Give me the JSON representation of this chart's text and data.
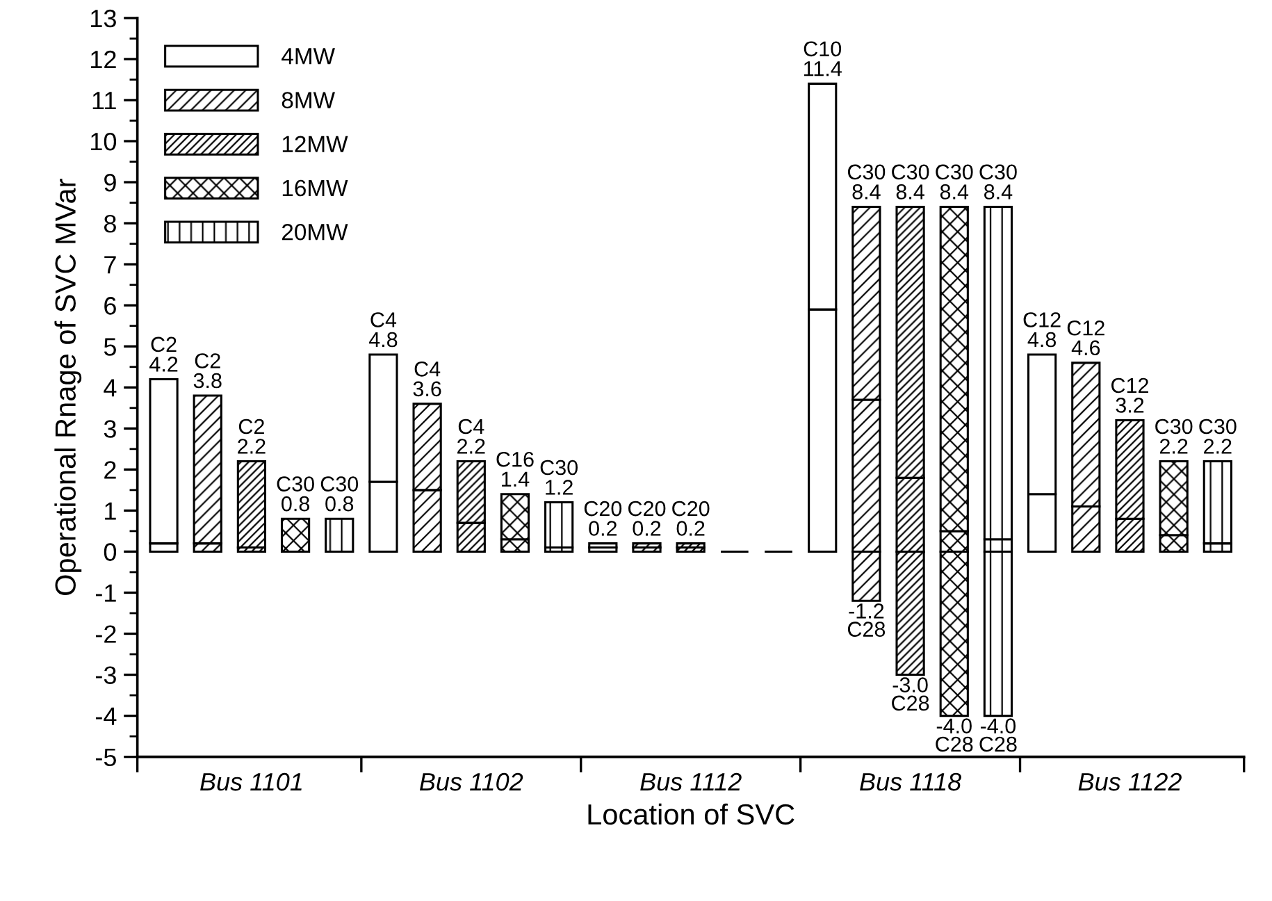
{
  "chart_data": {
    "type": "bar",
    "stacked": true,
    "xlabel": "Location of SVC",
    "ylabel": "Operational Rnage of SVC MVar",
    "categories": [
      null,
      null,
      "Bus 1101",
      null,
      null,
      null,
      null,
      "Bus 1102",
      null,
      null,
      null,
      null,
      "Bus 1112",
      null,
      null,
      null,
      null,
      "Bus 1118",
      null,
      null,
      null,
      null,
      "Bus 1122",
      null,
      null
    ],
    "series": [
      {
        "name": "4MW",
        "color": "#ffffff",
        "values": [
          0.2,
          null,
          null,
          null,
          null,
          1.7,
          null,
          null,
          null,
          null,
          0.1,
          null,
          null,
          null,
          null,
          5.9,
          null,
          null,
          null,
          null,
          1.4,
          null,
          null,
          null,
          null
        ]
      },
      {
        "color": "#ffffff",
        "values": [
          4.0,
          null,
          null,
          null,
          null,
          3.1,
          null,
          null,
          null,
          null,
          0.1,
          null,
          null,
          null,
          null,
          5.5,
          null,
          null,
          null,
          null,
          3.4,
          null,
          null,
          null,
          null
        ]
      },
      {
        "name": "8MW",
        "color": "#000000",
        "values": [
          null,
          0.2,
          null,
          null,
          null,
          null,
          1.5,
          null,
          null,
          null,
          null,
          0.1,
          null,
          null,
          null,
          null,
          3.7,
          null,
          null,
          null,
          null,
          1.1,
          null,
          null,
          null
        ]
      },
      {
        "color": "#000000",
        "values": [
          null,
          3.6,
          null,
          null,
          null,
          null,
          2.1,
          null,
          null,
          null,
          null,
          0.1,
          null,
          null,
          null,
          null,
          4.7,
          null,
          null,
          null,
          null,
          3.5,
          null,
          null,
          null
        ]
      },
      {
        "color": "#000000",
        "values": [
          null,
          null,
          null,
          null,
          null,
          null,
          null,
          null,
          null,
          null,
          null,
          null,
          null,
          null,
          null,
          null,
          -1.2,
          null,
          null,
          null,
          null,
          null,
          null,
          null,
          null
        ],
        "value_labels": [
          null,
          null,
          null,
          null,
          null,
          null,
          null,
          null,
          null,
          null,
          null,
          null,
          null,
          null,
          null,
          null,
          "-1.2\nC28",
          null,
          null,
          null,
          null,
          null,
          null,
          null,
          null
        ]
      },
      {
        "name": "12MW",
        "color": "#000000",
        "values": [
          null,
          null,
          0.1,
          null,
          null,
          null,
          null,
          0.7,
          null,
          null,
          null,
          null,
          0.1,
          null,
          null,
          null,
          null,
          1.8,
          null,
          null,
          null,
          null,
          0.8,
          null,
          null
        ]
      },
      {
        "color": "#000000",
        "values": [
          null,
          null,
          2.1,
          null,
          null,
          null,
          null,
          1.5,
          null,
          null,
          null,
          null,
          0.1,
          null,
          null,
          null,
          null,
          6.6,
          null,
          null,
          null,
          null,
          2.4,
          null,
          null
        ]
      },
      {
        "color": "#000000",
        "values": [
          null,
          null,
          null,
          null,
          null,
          null,
          null,
          null,
          null,
          null,
          null,
          null,
          null,
          null,
          null,
          null,
          null,
          -3.0,
          null,
          null,
          null,
          null,
          null,
          null,
          null
        ],
        "value_labels": [
          null,
          null,
          null,
          null,
          null,
          null,
          null,
          null,
          null,
          null,
          null,
          null,
          null,
          null,
          null,
          null,
          null,
          "-3.0\nC28",
          null,
          null,
          null,
          null,
          null,
          null,
          null
        ]
      },
      {
        "name": "16MW",
        "color": "#000000",
        "values": [
          null,
          null,
          null,
          0,
          null,
          null,
          null,
          null,
          0.3,
          null,
          null,
          null,
          null,
          0,
          null,
          null,
          null,
          null,
          0.5,
          null,
          null,
          null,
          null,
          0.4,
          null
        ]
      },
      {
        "color": "#000000",
        "values": [
          null,
          null,
          null,
          0.8,
          null,
          null,
          null,
          null,
          1.1,
          null,
          null,
          null,
          null,
          0,
          null,
          null,
          null,
          null,
          7.9,
          null,
          null,
          null,
          null,
          1.8,
          null
        ]
      },
      {
        "color": "#000000",
        "values": [
          null,
          null,
          null,
          null,
          null,
          null,
          null,
          null,
          null,
          null,
          null,
          null,
          null,
          null,
          null,
          null,
          null,
          null,
          -4.0,
          null,
          null,
          null,
          null,
          null,
          null
        ],
        "value_labels": [
          null,
          null,
          null,
          null,
          null,
          null,
          null,
          null,
          null,
          null,
          null,
          null,
          null,
          null,
          null,
          null,
          null,
          null,
          "-4.0\nC28",
          null,
          null,
          null,
          null,
          null,
          null
        ]
      },
      {
        "name": "20MW",
        "color": "#000000",
        "values": [
          null,
          null,
          null,
          null,
          0,
          null,
          null,
          null,
          null,
          0.1,
          null,
          null,
          null,
          null,
          0,
          null,
          null,
          null,
          null,
          0.3,
          null,
          null,
          null,
          null,
          0.2
        ]
      },
      {
        "color": "#000000",
        "values": [
          null,
          null,
          null,
          null,
          0.8,
          null,
          null,
          null,
          null,
          1.1,
          null,
          null,
          null,
          null,
          0,
          null,
          null,
          null,
          null,
          8.1,
          null,
          null,
          null,
          null,
          2.0
        ]
      },
      {
        "color": "#000000",
        "values": [
          null,
          null,
          null,
          null,
          null,
          null,
          null,
          null,
          null,
          null,
          null,
          null,
          null,
          null,
          null,
          null,
          null,
          null,
          null,
          -4.0,
          null,
          null,
          null,
          null,
          null
        ],
        "value_labels": [
          null,
          null,
          null,
          null,
          null,
          null,
          null,
          null,
          null,
          null,
          null,
          null,
          null,
          null,
          null,
          null,
          null,
          null,
          null,
          "-4.0\nC28",
          null,
          null,
          null,
          null,
          null
        ]
      }
    ],
    "totals": [
      "C2\n4.2",
      "C2\n3.8",
      "C2\n2.2",
      "C30\n0.8",
      "C30\n0.8",
      "C4\n4.8",
      "C4\n3.6",
      "C4\n2.2",
      "C16\n1.4",
      "C30\n1.2",
      "C20\n0.2",
      "C20\n0.2",
      "C20\n0.2",
      null,
      null,
      "C10\n11.4",
      "C30\n8.4",
      "C30\n8.4",
      "C30\n8.4",
      "C30\n8.4",
      "C12\n4.8",
      "C12\n4.6",
      "C12\n3.2",
      "C30\n2.2",
      "C30\n2.2"
    ],
    "ylim": [
      -5,
      13
    ],
    "yticks": [
      -5,
      -4,
      -3,
      -2,
      -1,
      0,
      1,
      2,
      3,
      4,
      5,
      6,
      7,
      8,
      9,
      10,
      11,
      12,
      13
    ],
    "legend": "top left",
    "grid": false
  }
}
